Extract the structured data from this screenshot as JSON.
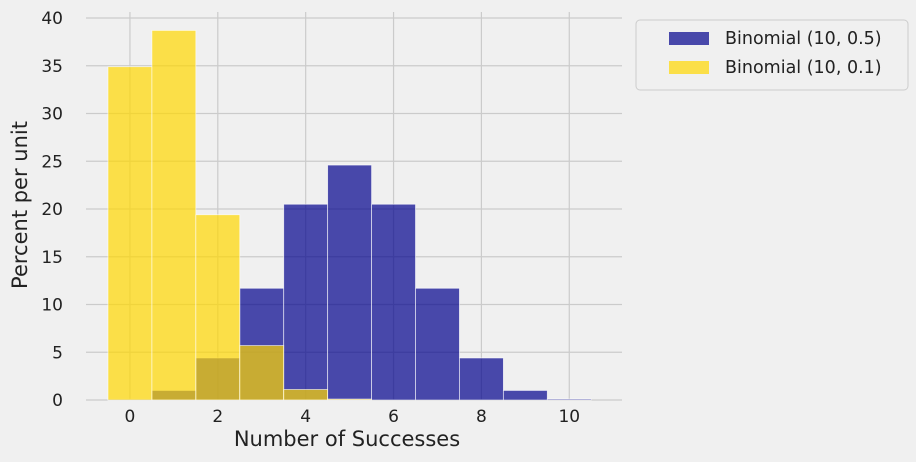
{
  "chart_data": {
    "type": "histogram",
    "title": "",
    "xlabel": "Number of Successes",
    "ylabel": "Percent per unit",
    "xlim": [
      -1.0,
      11.2
    ],
    "ylim": [
      0,
      40
    ],
    "xticks": [
      0,
      2,
      4,
      6,
      8,
      10
    ],
    "yticks": [
      0,
      5,
      10,
      15,
      20,
      25,
      30,
      35,
      40
    ],
    "grid": true,
    "legend_position": "outside-top-right",
    "bin_width": 1,
    "series": [
      {
        "name": "Binomial (10, 0.5)",
        "color": "#00008b",
        "opacity": 0.7,
        "bins": [
          0,
          1,
          2,
          3,
          4,
          5,
          6,
          7,
          8,
          9,
          10
        ],
        "values": [
          0.1,
          1.0,
          4.4,
          11.7,
          20.5,
          24.6,
          20.5,
          11.7,
          4.4,
          1.0,
          0.1
        ]
      },
      {
        "name": "Binomial (10, 0.1)",
        "color": "#ffd700",
        "opacity": 0.7,
        "bins": [
          0,
          1,
          2,
          3,
          4,
          5,
          6,
          7,
          8,
          9,
          10
        ],
        "values": [
          34.9,
          38.7,
          19.4,
          5.7,
          1.1,
          0.1,
          0.0,
          0.0,
          0.0,
          0.0,
          0.0
        ]
      }
    ]
  }
}
